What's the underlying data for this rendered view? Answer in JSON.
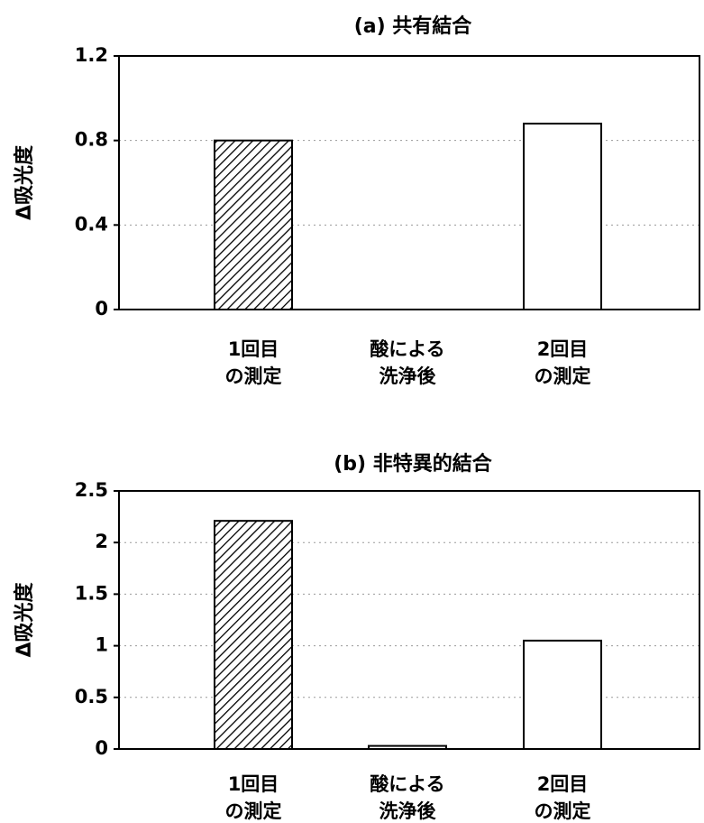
{
  "chart_data": [
    {
      "type": "bar",
      "title": "(a) 共有結合",
      "ylabel": "Δ吸光度",
      "xlabel": "",
      "ylim": [
        0,
        1.2
      ],
      "yticks": [
        "0",
        "0.4",
        "0.8",
        "1.2"
      ],
      "ytick_values": [
        0,
        0.4,
        0.8,
        1.2
      ],
      "grid": true,
      "categories": [
        [
          "1回目",
          "の測定"
        ],
        [
          "酸による",
          "洗浄後"
        ],
        [
          "2回目",
          "の測定"
        ]
      ],
      "values": [
        0.8,
        0.0,
        0.88
      ],
      "fills": [
        "hatch",
        "none",
        "white"
      ]
    },
    {
      "type": "bar",
      "title": "(b) 非特異的結合",
      "ylabel": "Δ吸光度",
      "xlabel": "",
      "ylim": [
        0,
        2.5
      ],
      "yticks": [
        "0",
        "0.5",
        "1",
        "1.5",
        "2",
        "2.5"
      ],
      "ytick_values": [
        0,
        0.5,
        1,
        1.5,
        2,
        2.5
      ],
      "grid": true,
      "categories": [
        [
          "1回目",
          "の測定"
        ],
        [
          "酸による",
          "洗浄後"
        ],
        [
          "2回目",
          "の測定"
        ]
      ],
      "values": [
        2.21,
        0.03,
        1.05
      ],
      "fills": [
        "hatch",
        "white",
        "white"
      ]
    }
  ]
}
